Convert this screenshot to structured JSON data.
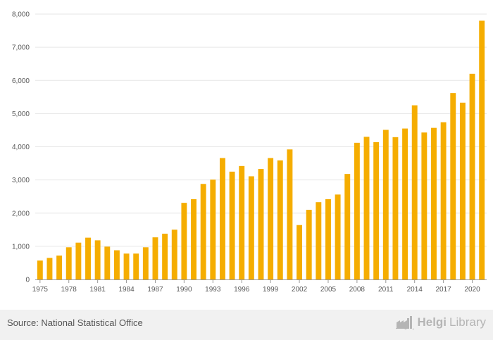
{
  "chart_data": {
    "type": "bar",
    "title": "",
    "xlabel": "",
    "ylabel": "",
    "ylim": [
      0,
      8000
    ],
    "yticks": [
      0,
      1000,
      2000,
      3000,
      4000,
      5000,
      6000,
      7000,
      8000
    ],
    "ytick_labels": [
      "0",
      "1,000",
      "2,000",
      "3,000",
      "4,000",
      "5,000",
      "6,000",
      "7,000",
      "8,000"
    ],
    "categories": [
      1975,
      1976,
      1977,
      1978,
      1979,
      1980,
      1981,
      1982,
      1983,
      1984,
      1985,
      1986,
      1987,
      1988,
      1989,
      1990,
      1991,
      1992,
      1993,
      1994,
      1995,
      1996,
      1997,
      1998,
      1999,
      2000,
      2001,
      2002,
      2003,
      2004,
      2005,
      2006,
      2007,
      2008,
      2009,
      2010,
      2011,
      2012,
      2013,
      2014,
      2015,
      2016,
      2017,
      2018,
      2019,
      2020,
      2021
    ],
    "xtick_labels": [
      "1975",
      "1978",
      "1981",
      "1984",
      "1987",
      "1990",
      "1993",
      "1996",
      "1999",
      "2002",
      "2005",
      "2008",
      "2011",
      "2014",
      "2017",
      "2020"
    ],
    "values": [
      570,
      650,
      720,
      970,
      1110,
      1260,
      1180,
      990,
      880,
      780,
      780,
      970,
      1270,
      1380,
      1500,
      2310,
      2420,
      2880,
      3010,
      3660,
      3250,
      3420,
      3110,
      3330,
      3660,
      3590,
      3920,
      1640,
      2100,
      2330,
      2420,
      2560,
      3180,
      4120,
      4300,
      4140,
      4510,
      4290,
      4550,
      5250,
      4430,
      4570,
      4740,
      5620,
      5330,
      6200,
      7800
    ],
    "bar_color": "#f5ad00",
    "grid": true
  },
  "footer": {
    "source": "Source: National Statistical Office",
    "logo_text_bold": "Helgi",
    "logo_text_regular": "Library"
  }
}
